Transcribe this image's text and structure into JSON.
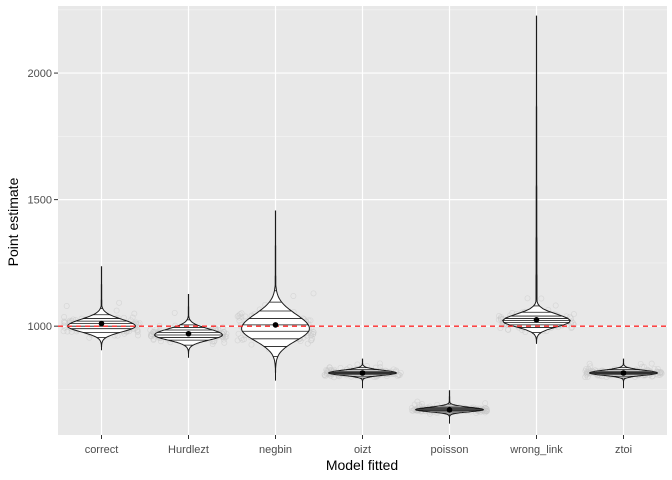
{
  "chart_data": {
    "type": "violin",
    "title": "",
    "xlabel": "Model fitted",
    "ylabel": "Point estimate",
    "categories": [
      "correct",
      "Hurdlezt",
      "negbin",
      "oizt",
      "poisson",
      "wrong_link",
      "ztoi"
    ],
    "ylim": [
      1000,
      2000
    ],
    "yticks": [
      1000,
      1500,
      2000
    ],
    "reference_line": {
      "value": 1000,
      "color": "#ff2b2b",
      "style": "dashed"
    },
    "grid": true,
    "series": [
      {
        "category": "correct",
        "mean": 1010,
        "min": 905,
        "max": 1235,
        "mode": 1000,
        "spread": 45,
        "quantiles": [
          955,
          975,
          990,
          1000,
          1010,
          1020,
          1030,
          1045,
          1070
        ]
      },
      {
        "category": "Hurdlezt",
        "mean": 970,
        "min": 875,
        "max": 1125,
        "mode": 965,
        "spread": 40,
        "quantiles": [
          925,
          945,
          955,
          965,
          975,
          985,
          995,
          1005,
          1025
        ]
      },
      {
        "category": "negbin",
        "mean": 1005,
        "min": 785,
        "max": 1455,
        "mode": 990,
        "spread": 95,
        "quantiles": [
          880,
          920,
          950,
          980,
          1005,
          1030,
          1060,
          1095,
          1140
        ]
      },
      {
        "category": "oizt",
        "mean": 815,
        "min": 755,
        "max": 870,
        "mode": 815,
        "spread": 18,
        "quantiles": [
          795,
          802,
          808,
          812,
          815,
          818,
          822,
          828,
          836
        ]
      },
      {
        "category": "poisson",
        "mean": 670,
        "min": 615,
        "max": 745,
        "mode": 670,
        "spread": 16,
        "quantiles": [
          650,
          657,
          662,
          667,
          670,
          674,
          678,
          684,
          692
        ]
      },
      {
        "category": "wrong_link",
        "mean": 1025,
        "min": 930,
        "max": 2225,
        "mode": 1020,
        "spread": 45,
        "quantiles": [
          975,
          995,
          1005,
          1015,
          1022,
          1030,
          1040,
          1055,
          1080
        ]
      },
      {
        "category": "ztoi",
        "mean": 815,
        "min": 755,
        "max": 870,
        "mode": 815,
        "spread": 18,
        "quantiles": [
          795,
          802,
          808,
          812,
          815,
          818,
          822,
          828,
          836
        ]
      }
    ],
    "jitter_points": {
      "shown": true,
      "style": "hollow-grey-circles"
    }
  }
}
